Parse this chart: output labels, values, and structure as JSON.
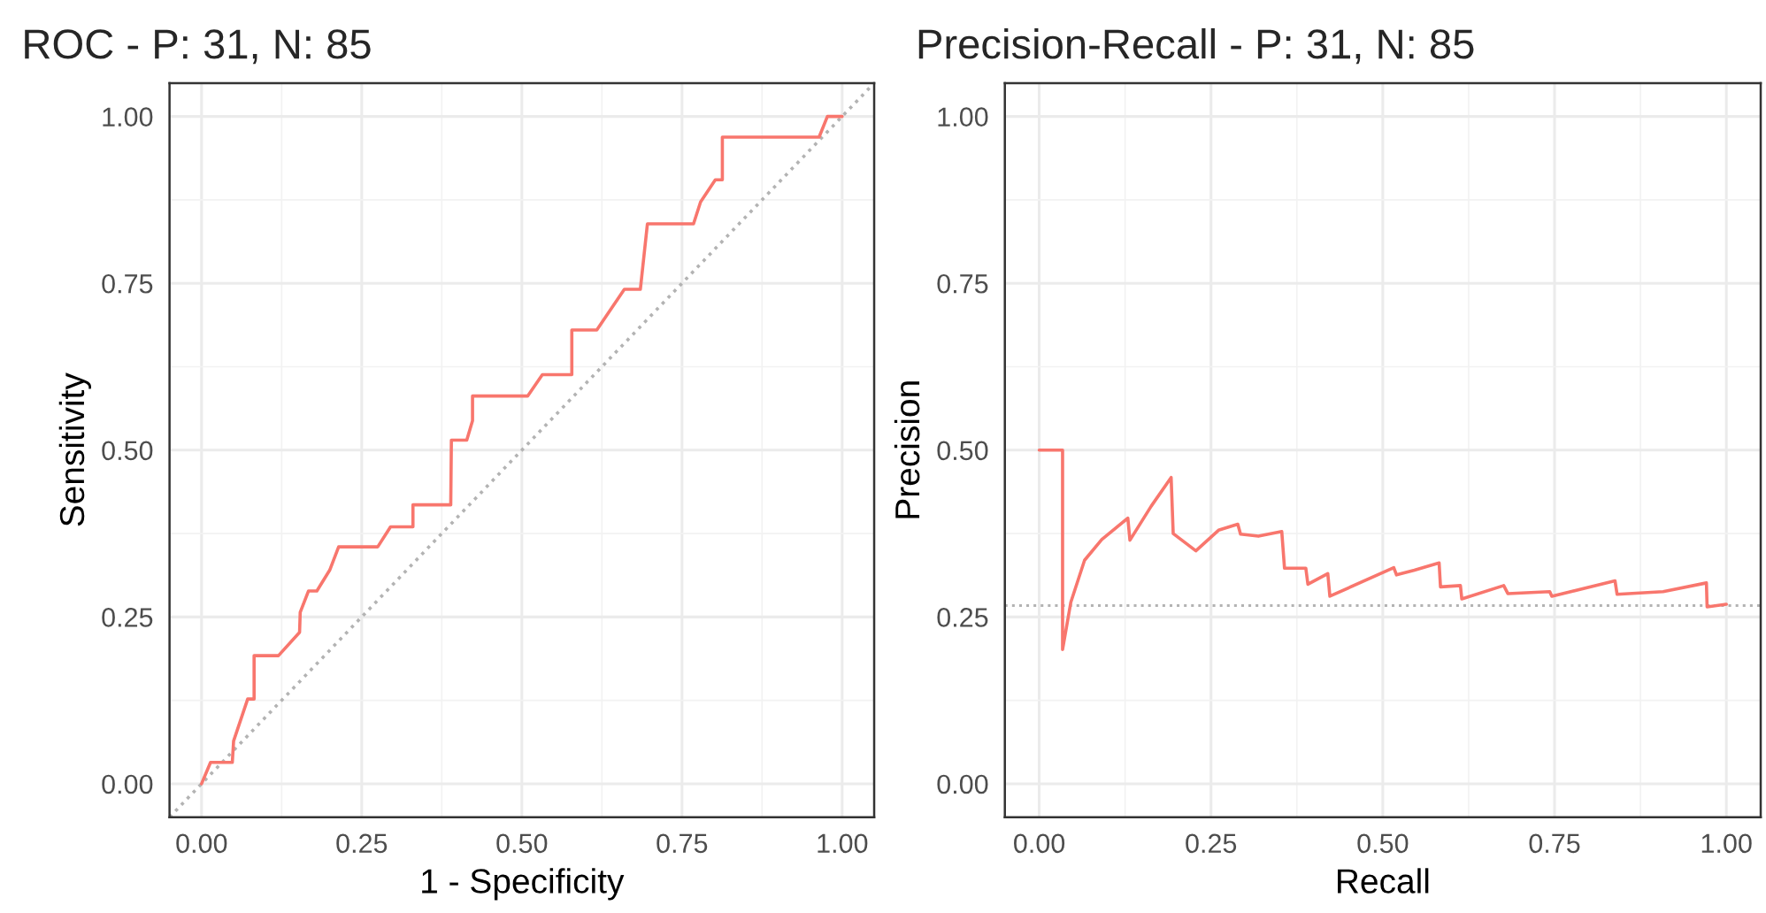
{
  "chart_data": [
    {
      "type": "line",
      "title": "ROC - P: 31, N: 85",
      "xlabel": "1 - Specificity",
      "ylabel": "Sensitivity",
      "series": [
        {
          "color": "#f8766d",
          "x": [
            0,
            0.014,
            0.048,
            0.05,
            0.072,
            0.082,
            0.082,
            0.12,
            0.153,
            0.154,
            0.167,
            0.18,
            0.2,
            0.214,
            0.275,
            0.295,
            0.33,
            0.33,
            0.389,
            0.39,
            0.414,
            0.423,
            0.423,
            0.509,
            0.532,
            0.578,
            0.578,
            0.617,
            0.66,
            0.685,
            0.696,
            0.768,
            0.779,
            0.802,
            0.813,
            0.813,
            0.964,
            0.977,
            1
          ],
          "values": [
            0,
            0.032,
            0.032,
            0.064,
            0.127,
            0.127,
            0.192,
            0.192,
            0.227,
            0.257,
            0.289,
            0.289,
            0.32,
            0.355,
            0.355,
            0.385,
            0.385,
            0.418,
            0.418,
            0.515,
            0.515,
            0.544,
            0.581,
            0.581,
            0.613,
            0.613,
            0.68,
            0.68,
            0.741,
            0.741,
            0.839,
            0.839,
            0.872,
            0.905,
            0.905,
            0.969,
            0.969,
            1,
            1
          ]
        },
        {
          "color": "#b3b3b3",
          "line_style": "dotted",
          "x": [
            -0.05,
            1.05
          ],
          "values": [
            -0.05,
            1.05
          ]
        }
      ],
      "xlim": [
        -0.05,
        1.05
      ],
      "ylim": [
        -0.05,
        1.05
      ],
      "xticks": [
        {
          "value": 0,
          "label": "0.00"
        },
        {
          "value": 0.25,
          "label": "0.25"
        },
        {
          "value": 0.5,
          "label": "0.50"
        },
        {
          "value": 0.75,
          "label": "0.75"
        },
        {
          "value": 1,
          "label": "1.00"
        }
      ],
      "yticks": [
        {
          "value": 0,
          "label": "0.00"
        },
        {
          "value": 0.25,
          "label": "0.25"
        },
        {
          "value": 0.5,
          "label": "0.50"
        },
        {
          "value": 0.75,
          "label": "0.75"
        },
        {
          "value": 1,
          "label": "1.00"
        }
      ],
      "grid": true,
      "legend": false
    },
    {
      "type": "line",
      "title": "Precision-Recall - P: 31, N: 85",
      "xlabel": "Recall",
      "ylabel": "Precision",
      "series": [
        {
          "color": "#f8766d",
          "x": [
            0,
            0.034,
            0.034,
            0.046,
            0.066,
            0.091,
            0.129,
            0.132,
            0.163,
            0.192,
            0.195,
            0.228,
            0.261,
            0.289,
            0.293,
            0.319,
            0.353,
            0.357,
            0.388,
            0.391,
            0.42,
            0.423,
            0.516,
            0.52,
            0.546,
            0.582,
            0.584,
            0.613,
            0.615,
            0.676,
            0.682,
            0.743,
            0.746,
            0.838,
            0.841,
            0.908,
            0.971,
            0.972,
            1.0
          ],
          "values": [
            0.5,
            0.5,
            0.201,
            0.272,
            0.335,
            0.366,
            0.398,
            0.365,
            0.416,
            0.459,
            0.375,
            0.349,
            0.38,
            0.389,
            0.374,
            0.371,
            0.378,
            0.323,
            0.323,
            0.299,
            0.315,
            0.281,
            0.324,
            0.313,
            0.32,
            0.331,
            0.295,
            0.297,
            0.277,
            0.297,
            0.285,
            0.288,
            0.281,
            0.304,
            0.284,
            0.288,
            0.301,
            0.265,
            0.269
          ]
        }
      ],
      "ref_lines": [
        {
          "axis": "y",
          "value": 0.267,
          "color": "#b3b3b3",
          "line_style": "dotted"
        }
      ],
      "xlim": [
        -0.05,
        1.05
      ],
      "ylim": [
        -0.05,
        1.05
      ],
      "xticks": [
        {
          "value": 0,
          "label": "0.00"
        },
        {
          "value": 0.25,
          "label": "0.25"
        },
        {
          "value": 0.5,
          "label": "0.50"
        },
        {
          "value": 0.75,
          "label": "0.75"
        },
        {
          "value": 1,
          "label": "1.00"
        }
      ],
      "yticks": [
        {
          "value": 0,
          "label": "0.00"
        },
        {
          "value": 0.25,
          "label": "0.25"
        },
        {
          "value": 0.5,
          "label": "0.50"
        },
        {
          "value": 0.75,
          "label": "0.75"
        },
        {
          "value": 1,
          "label": "1.00"
        }
      ],
      "grid": true,
      "legend": false
    }
  ]
}
